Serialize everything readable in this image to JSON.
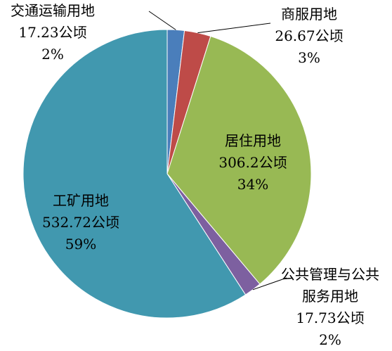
{
  "chart_data": {
    "type": "pie",
    "categories": [
      "交通运输用地",
      "商服用地",
      "居住用地",
      "公共管理与公共服务用地",
      "工矿用地"
    ],
    "values": [
      17.23,
      26.67,
      306.2,
      17.73,
      532.72
    ],
    "value_labels": [
      "17.23公顷",
      "26.67公顷",
      "306.2公顷",
      "17.73公顷",
      "532.72公顷"
    ],
    "percent_labels": [
      "2%",
      "3%",
      "34%",
      "2%",
      "59%"
    ],
    "colors": [
      "#4a7ebb",
      "#be4b48",
      "#98b954",
      "#7d60a0",
      "#4198af"
    ]
  }
}
